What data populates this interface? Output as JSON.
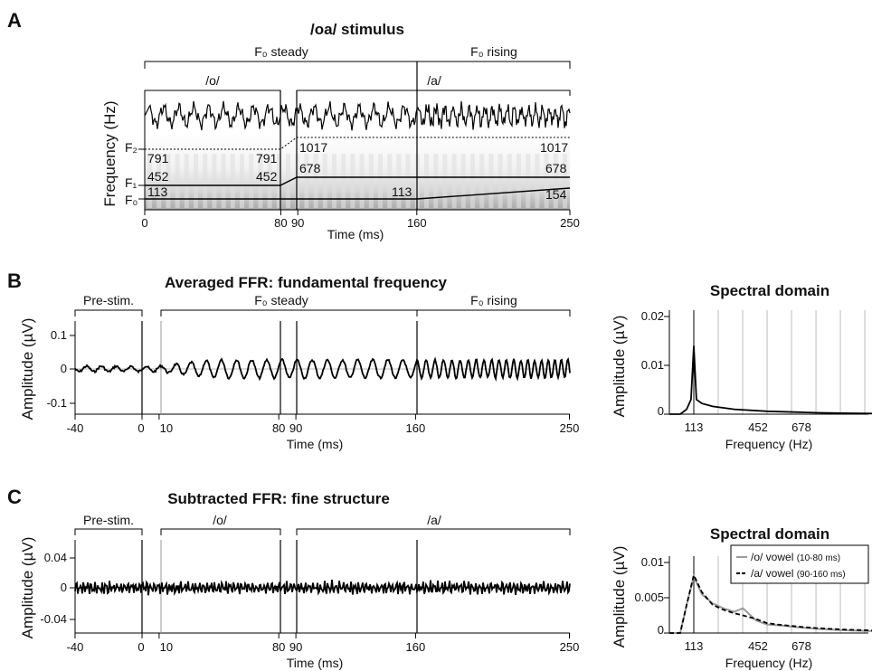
{
  "panelA": {
    "letter": "A",
    "title": "/oa/ stimulus",
    "segments_top": [
      "F₀ steady",
      "F₀ rising"
    ],
    "segments_vowel": [
      "/o/",
      "/a/"
    ],
    "ylabel": "Frequency (Hz)",
    "xlabel": "Time (ms)",
    "xticks": [
      0,
      80,
      90,
      160,
      250
    ],
    "formant_labels": [
      "F₂",
      "F₁",
      "F₀"
    ],
    "values": {
      "f2_o": "791",
      "f2_a": "1017",
      "f1_o": "452",
      "f1_a": "678",
      "f0_start": "113",
      "f0_end": "154"
    }
  },
  "panelB": {
    "letter": "B",
    "title": "Averaged FFR: fundamental frequency",
    "segments": [
      "Pre-stim.",
      "F₀ steady",
      "F₀ rising"
    ],
    "ylabel": "Amplitude (µV)",
    "xlabel": "Time (ms)",
    "xticks": [
      -40,
      0,
      10,
      80,
      90,
      160,
      250
    ],
    "yticks": [
      "0.1",
      "0",
      "-0.1"
    ],
    "spectral": {
      "title": "Spectral domain",
      "ylabel": "Amplitude (µV)",
      "xlabel": "Frequency (Hz)",
      "xticks": [
        "113",
        "452",
        "678"
      ],
      "yticks": [
        "0.02",
        "0.01",
        "0"
      ]
    }
  },
  "panelC": {
    "letter": "C",
    "title": "Subtracted FFR: fine structure",
    "segments": [
      "Pre-stim.",
      "/o/",
      "/a/"
    ],
    "ylabel": "Amplitude (µV)",
    "xlabel": "Time (ms)",
    "xticks": [
      -40,
      0,
      10,
      80,
      90,
      160,
      250
    ],
    "yticks": [
      "0.04",
      "0",
      "-0.04"
    ],
    "spectral": {
      "title": "Spectral domain",
      "ylabel": "Amplitude (µV)",
      "xlabel": "Frequency (Hz)",
      "xticks": [
        "113",
        "452",
        "678"
      ],
      "yticks": [
        "0.01",
        "0.005",
        "0"
      ],
      "legend": [
        {
          "name": "/o/ vowel",
          "note": "(10-80 ms)",
          "color": "#9a9a9a"
        },
        {
          "name": "/a/ vowel",
          "note": "(90-160 ms)",
          "color": "#000000"
        }
      ]
    }
  },
  "chart_data": [
    {
      "type": "line",
      "title": "/oa/ stimulus",
      "xlabel": "Time (ms)",
      "ylabel": "Frequency (Hz)",
      "xlim": [
        0,
        250
      ],
      "series": [
        {
          "name": "F₀",
          "x": [
            0,
            80,
            90,
            160,
            250
          ],
          "y": [
            113,
            113,
            113,
            113,
            154
          ]
        },
        {
          "name": "F₁",
          "x": [
            0,
            80,
            90,
            160,
            250
          ],
          "y": [
            452,
            452,
            678,
            678,
            678
          ]
        },
        {
          "name": "F₂",
          "x": [
            0,
            80,
            90,
            160,
            250
          ],
          "y": [
            791,
            791,
            1017,
            1017,
            1017
          ]
        }
      ]
    },
    {
      "type": "line",
      "title": "Averaged FFR: fundamental frequency",
      "xlabel": "Time (ms)",
      "ylabel": "Amplitude (µV)",
      "xlim": [
        -40,
        250
      ],
      "ylim": [
        -0.12,
        0.12
      ],
      "f0_hz": [
        113,
        154
      ]
    },
    {
      "type": "line",
      "title": "Spectral domain",
      "xlabel": "Frequency (Hz)",
      "ylabel": "Amplitude (µV)",
      "ylim": [
        0,
        0.02
      ],
      "x": [
        0,
        50,
        80,
        100,
        113,
        125,
        150,
        200,
        300,
        452,
        600,
        678,
        800,
        1000
      ],
      "values": [
        0,
        0,
        0.001,
        0.003,
        0.014,
        0.003,
        0.0022,
        0.0016,
        0.001,
        0.0006,
        0.0004,
        0.0003,
        0.0002,
        0.0001
      ]
    },
    {
      "type": "line",
      "title": "Subtracted FFR: fine structure",
      "xlabel": "Time (ms)",
      "ylabel": "Amplitude (µV)",
      "xlim": [
        -40,
        250
      ],
      "ylim": [
        -0.06,
        0.06
      ]
    },
    {
      "type": "line",
      "title": "Spectral domain",
      "xlabel": "Frequency (Hz)",
      "ylabel": "Amplitude (µV)",
      "ylim": [
        0,
        0.01
      ],
      "x": [
        0,
        50,
        80,
        113,
        150,
        200,
        250,
        300,
        340,
        400,
        452,
        500,
        600,
        678,
        800,
        1000
      ],
      "series": [
        {
          "name": "/o/ vowel",
          "values": [
            0,
            0,
            0.004,
            0.008,
            0.0055,
            0.0042,
            0.0035,
            0.003,
            0.0035,
            0.0018,
            0.0012,
            0.0011,
            0.0008,
            0.0006,
            0.0004,
            0.0002
          ]
        },
        {
          "name": "/a/ vowel",
          "values": [
            0,
            0,
            0.004,
            0.0082,
            0.0058,
            0.004,
            0.0033,
            0.0028,
            0.0025,
            0.002,
            0.0014,
            0.0012,
            0.0009,
            0.0007,
            0.0005,
            0.0003
          ]
        }
      ]
    }
  ]
}
